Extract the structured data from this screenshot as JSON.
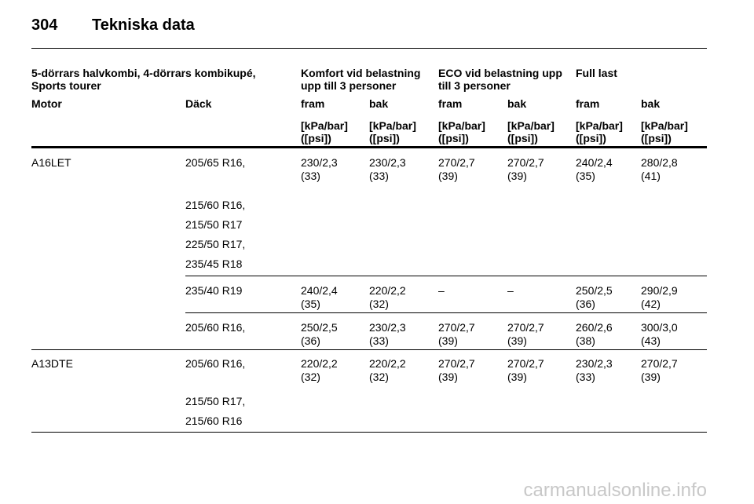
{
  "header": {
    "page_number": "304",
    "title": "Tekniska data"
  },
  "table": {
    "group_headers": [
      "5-dörrars halvkombi, 4-dörrars kombikupé, Sports tourer",
      "Komfort vid belastning upp till 3 personer",
      "ECO vid belastning upp till 3 personer",
      "Full last"
    ],
    "column_headers": [
      "Motor",
      "Däck",
      "fram",
      "bak",
      "fram",
      "bak",
      "fram",
      "bak"
    ],
    "units": [
      "[kPa/bar]",
      "([psi])"
    ],
    "rows": [
      {
        "motor": "A16LET",
        "tires": [
          "205/65 R16,",
          "215/60 R16,",
          "215/50 R17",
          "225/50 R17,",
          "235/45 R18"
        ],
        "values": [
          {
            "value": "230/2,3",
            "psi": "(33)"
          },
          {
            "value": "230/2,3",
            "psi": "(33)"
          },
          {
            "value": "270/2,7",
            "psi": "(39)"
          },
          {
            "value": "270/2,7",
            "psi": "(39)"
          },
          {
            "value": "240/2,4",
            "psi": "(35)"
          },
          {
            "value": "280/2,8",
            "psi": "(41)"
          }
        ]
      },
      {
        "tires": [
          "235/40 R19"
        ],
        "values": [
          {
            "value": "240/2,4",
            "psi": "(35)"
          },
          {
            "value": "220/2,2",
            "psi": "(32)"
          },
          {
            "value": "–"
          },
          {
            "value": "–"
          },
          {
            "value": "250/2,5",
            "psi": "(36)"
          },
          {
            "value": "290/2,9",
            "psi": "(42)"
          }
        ]
      },
      {
        "tires": [
          "205/60 R16,"
        ],
        "values": [
          {
            "value": "250/2,5",
            "psi": "(36)"
          },
          {
            "value": "230/2,3",
            "psi": "(33)"
          },
          {
            "value": "270/2,7",
            "psi": "(39)"
          },
          {
            "value": "270/2,7",
            "psi": "(39)"
          },
          {
            "value": "260/2,6",
            "psi": "(38)"
          },
          {
            "value": "300/3,0",
            "psi": "(43)"
          }
        ]
      },
      {
        "motor": "A13DTE",
        "tires": [
          "205/60 R16,",
          "215/50 R17,",
          "215/60 R16"
        ],
        "values": [
          {
            "value": "220/2,2",
            "psi": "(32)"
          },
          {
            "value": "220/2,2",
            "psi": "(32)"
          },
          {
            "value": "270/2,7",
            "psi": "(39)"
          },
          {
            "value": "270/2,7",
            "psi": "(39)"
          },
          {
            "value": "230/2,3",
            "psi": "(33)"
          },
          {
            "value": "270/2,7",
            "psi": "(39)"
          }
        ]
      }
    ]
  },
  "watermark": "carmanualsonline.info"
}
